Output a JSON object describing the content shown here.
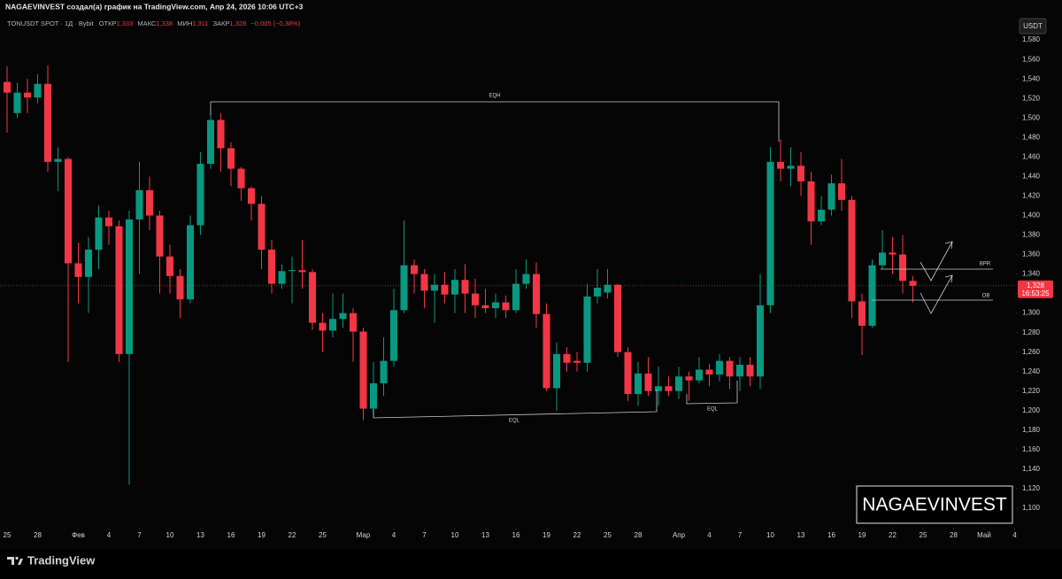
{
  "header": {
    "title": "NAGAEVINVEST создал(а) график на TradingView.com, Апр 24, 2026 10:06 UTC+3"
  },
  "chart_data": {
    "type": "candlestick",
    "legend": {
      "symbol": "TONUSDT SPOT · 1Д · Bybit",
      "fields": [
        {
          "label": "ОТКР",
          "value": "1,333"
        },
        {
          "label": "МАКС",
          "value": "1,338"
        },
        {
          "label": "МИН",
          "value": "1,311"
        },
        {
          "label": "ЗАКР",
          "value": "1,328"
        }
      ],
      "change": "−0,005 (−0,38%)"
    },
    "currency": "USDT",
    "x": [
      "01-25",
      "01-26",
      "01-27",
      "01-28",
      "01-29",
      "01-30",
      "01-31",
      "02-01",
      "02-02",
      "02-03",
      "02-04",
      "02-05",
      "02-06",
      "02-07",
      "02-08",
      "02-09",
      "02-10",
      "02-11",
      "02-12",
      "02-13",
      "02-14",
      "02-15",
      "02-16",
      "02-17",
      "02-18",
      "02-19",
      "02-20",
      "02-21",
      "02-22",
      "02-23",
      "02-24",
      "02-25",
      "02-26",
      "02-27",
      "02-28",
      "03-01",
      "03-02",
      "03-03",
      "03-04",
      "03-05",
      "03-06",
      "03-07",
      "03-08",
      "03-09",
      "03-10",
      "03-11",
      "03-12",
      "03-13",
      "03-14",
      "03-15",
      "03-16",
      "03-17",
      "03-18",
      "03-19",
      "03-20",
      "03-21",
      "03-22",
      "03-23",
      "03-24",
      "03-25",
      "03-26",
      "03-27",
      "03-28",
      "03-29",
      "03-30",
      "03-31",
      "04-01",
      "04-02",
      "04-03",
      "04-04",
      "04-05",
      "04-06",
      "04-07",
      "04-08",
      "04-09",
      "04-10",
      "04-11",
      "04-12",
      "04-13",
      "04-14",
      "04-15",
      "04-16",
      "04-17",
      "04-18",
      "04-19",
      "04-20",
      "04-21",
      "04-22",
      "04-23",
      "04-24"
    ],
    "open": [
      1.537,
      1.505,
      1.526,
      1.521,
      1.535,
      1.455,
      1.458,
      1.351,
      1.337,
      1.365,
      1.398,
      1.389,
      1.258,
      1.396,
      1.426,
      1.4,
      1.358,
      1.338,
      1.314,
      1.39,
      1.453,
      1.498,
      1.469,
      1.448,
      1.428,
      1.412,
      1.365,
      1.33,
      1.343,
      1.344,
      1.342,
      1.29,
      1.282,
      1.294,
      1.3,
      1.281,
      1.202,
      1.228,
      1.251,
      1.303,
      1.349,
      1.34,
      1.323,
      1.329,
      1.319,
      1.334,
      1.32,
      1.308,
      1.305,
      1.311,
      1.303,
      1.33,
      1.34,
      1.299,
      1.223,
      1.258,
      1.251,
      1.249,
      1.317,
      1.321,
      1.329,
      1.26,
      1.217,
      1.238,
      1.22,
      1.225,
      1.22,
      1.235,
      1.231,
      1.242,
      1.237,
      1.251,
      1.235,
      1.247,
      1.235,
      1.308,
      1.455,
      1.448,
      1.451,
      1.435,
      1.394,
      1.406,
      1.433,
      1.416,
      1.312,
      1.287,
      1.349,
      1.362,
      1.36,
      1.333
    ],
    "high": [
      1.553,
      1.536,
      1.54,
      1.545,
      1.554,
      1.47,
      1.46,
      1.372,
      1.378,
      1.41,
      1.405,
      1.395,
      1.405,
      1.455,
      1.44,
      1.405,
      1.37,
      1.345,
      1.4,
      1.465,
      1.508,
      1.505,
      1.475,
      1.45,
      1.43,
      1.42,
      1.375,
      1.35,
      1.358,
      1.375,
      1.345,
      1.3,
      1.32,
      1.32,
      1.305,
      1.285,
      1.25,
      1.275,
      1.325,
      1.395,
      1.355,
      1.345,
      1.34,
      1.342,
      1.345,
      1.35,
      1.335,
      1.325,
      1.32,
      1.318,
      1.345,
      1.355,
      1.352,
      1.31,
      1.27,
      1.265,
      1.26,
      1.33,
      1.345,
      1.345,
      1.33,
      1.265,
      1.25,
      1.255,
      1.245,
      1.235,
      1.245,
      1.24,
      1.255,
      1.248,
      1.258,
      1.255,
      1.255,
      1.255,
      1.34,
      1.47,
      1.478,
      1.47,
      1.465,
      1.445,
      1.42,
      1.442,
      1.458,
      1.42,
      1.32,
      1.355,
      1.385,
      1.378,
      1.38,
      1.338
    ],
    "low": [
      1.485,
      1.5,
      1.505,
      1.515,
      1.445,
      1.425,
      1.25,
      1.31,
      1.3,
      1.345,
      1.37,
      1.25,
      1.124,
      1.34,
      1.385,
      1.32,
      1.32,
      1.295,
      1.31,
      1.38,
      1.448,
      1.445,
      1.43,
      1.415,
      1.395,
      1.345,
      1.32,
      1.325,
      1.31,
      1.325,
      1.283,
      1.26,
      1.275,
      1.285,
      1.25,
      1.19,
      1.195,
      1.215,
      1.245,
      1.3,
      1.32,
      1.305,
      1.29,
      1.31,
      1.3,
      1.3,
      1.295,
      1.3,
      1.295,
      1.295,
      1.3,
      1.325,
      1.285,
      1.22,
      1.2,
      1.24,
      1.24,
      1.24,
      1.31,
      1.315,
      1.255,
      1.21,
      1.205,
      1.215,
      1.205,
      1.215,
      1.212,
      1.21,
      1.228,
      1.225,
      1.23,
      1.222,
      1.22,
      1.225,
      1.222,
      1.3,
      1.435,
      1.43,
      1.42,
      1.37,
      1.39,
      1.4,
      1.405,
      1.295,
      1.257,
      1.285,
      1.345,
      1.34,
      1.32,
      1.311
    ],
    "close": [
      1.526,
      1.526,
      1.521,
      1.535,
      1.455,
      1.458,
      1.351,
      1.337,
      1.365,
      1.398,
      1.389,
      1.258,
      1.396,
      1.426,
      1.4,
      1.358,
      1.338,
      1.314,
      1.39,
      1.453,
      1.498,
      1.469,
      1.448,
      1.428,
      1.412,
      1.365,
      1.33,
      1.343,
      1.344,
      1.342,
      1.29,
      1.282,
      1.294,
      1.3,
      1.281,
      1.202,
      1.228,
      1.251,
      1.303,
      1.349,
      1.34,
      1.323,
      1.329,
      1.319,
      1.334,
      1.32,
      1.308,
      1.305,
      1.311,
      1.303,
      1.33,
      1.34,
      1.299,
      1.223,
      1.258,
      1.249,
      1.249,
      1.317,
      1.326,
      1.329,
      1.26,
      1.217,
      1.238,
      1.22,
      1.225,
      1.22,
      1.235,
      1.231,
      1.242,
      1.237,
      1.251,
      1.235,
      1.247,
      1.235,
      1.308,
      1.455,
      1.448,
      1.451,
      1.435,
      1.394,
      1.406,
      1.433,
      1.416,
      1.312,
      1.287,
      1.349,
      1.362,
      1.36,
      1.333,
      1.328
    ],
    "up_color": "#089981",
    "down_color": "#f23645",
    "xlim": [
      "01-24",
      "05-04"
    ],
    "xticks": [
      {
        "value": "01-25",
        "label": "25"
      },
      {
        "value": "01-28",
        "label": "28"
      },
      {
        "value": "02-01",
        "label": "Фев"
      },
      {
        "value": "02-04",
        "label": "4"
      },
      {
        "value": "02-07",
        "label": "7"
      },
      {
        "value": "02-10",
        "label": "10"
      },
      {
        "value": "02-13",
        "label": "13"
      },
      {
        "value": "02-16",
        "label": "16"
      },
      {
        "value": "02-19",
        "label": "19"
      },
      {
        "value": "02-22",
        "label": "22"
      },
      {
        "value": "02-25",
        "label": "25"
      },
      {
        "value": "03-01",
        "label": "Мар"
      },
      {
        "value": "03-04",
        "label": "4"
      },
      {
        "value": "03-07",
        "label": "7"
      },
      {
        "value": "03-10",
        "label": "10"
      },
      {
        "value": "03-13",
        "label": "13"
      },
      {
        "value": "03-16",
        "label": "16"
      },
      {
        "value": "03-19",
        "label": "19"
      },
      {
        "value": "03-22",
        "label": "22"
      },
      {
        "value": "03-25",
        "label": "25"
      },
      {
        "value": "03-28",
        "label": "28"
      },
      {
        "value": "04-01",
        "label": "Апр"
      },
      {
        "value": "04-04",
        "label": "4"
      },
      {
        "value": "04-07",
        "label": "7"
      },
      {
        "value": "04-10",
        "label": "10"
      },
      {
        "value": "04-13",
        "label": "13"
      },
      {
        "value": "04-16",
        "label": "16"
      },
      {
        "value": "04-19",
        "label": "19"
      },
      {
        "value": "04-22",
        "label": "22"
      },
      {
        "value": "04-25",
        "label": "25"
      },
      {
        "value": "04-28",
        "label": "28"
      },
      {
        "value": "05-01",
        "label": "Май"
      },
      {
        "value": "05-04",
        "label": "4"
      }
    ],
    "ylim": [
      1.08,
      1.601
    ],
    "yticks": [
      {
        "value": 1.1,
        "label": "1,100"
      },
      {
        "value": 1.12,
        "label": "1,120"
      },
      {
        "value": 1.14,
        "label": "1,140"
      },
      {
        "value": 1.16,
        "label": "1,160"
      },
      {
        "value": 1.18,
        "label": "1,180"
      },
      {
        "value": 1.2,
        "label": "1,200"
      },
      {
        "value": 1.22,
        "label": "1,220"
      },
      {
        "value": 1.24,
        "label": "1,240"
      },
      {
        "value": 1.26,
        "label": "1,260"
      },
      {
        "value": 1.28,
        "label": "1,280"
      },
      {
        "value": 1.3,
        "label": "1,300"
      },
      {
        "value": 1.32,
        "label": "1,320"
      },
      {
        "value": 1.34,
        "label": "1,340"
      },
      {
        "value": 1.36,
        "label": "1,360"
      },
      {
        "value": 1.38,
        "label": "1,380"
      },
      {
        "value": 1.4,
        "label": "1,400"
      },
      {
        "value": 1.42,
        "label": "1,420"
      },
      {
        "value": 1.44,
        "label": "1,440"
      },
      {
        "value": 1.46,
        "label": "1,460"
      },
      {
        "value": 1.48,
        "label": "1,480"
      },
      {
        "value": 1.5,
        "label": "1,500"
      },
      {
        "value": 1.52,
        "label": "1,520"
      },
      {
        "value": 1.54,
        "label": "1,540"
      },
      {
        "value": 1.56,
        "label": "1,560"
      },
      {
        "value": 1.58,
        "label": "1,580"
      }
    ],
    "grid": false,
    "price_tag": {
      "value": 1.328,
      "label": "1,328",
      "countdown": "16:53:25"
    },
    "annotations": [
      "EQH",
      "EQL",
      "EQL",
      "BPR",
      "OB"
    ]
  },
  "watermark": "NAGAEVINVEST",
  "footer": {
    "brand": "TradingView"
  }
}
